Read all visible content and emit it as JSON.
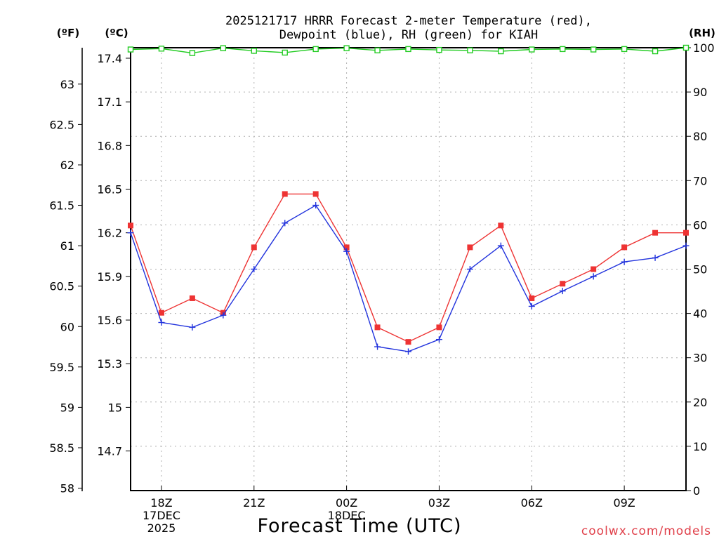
{
  "chart_data": {
    "type": "line",
    "title_lines": [
      "2025121717 HRRR Forecast 2-meter Temperature (red),",
      "Dewpoint (blue), RH (green) for KIAH"
    ],
    "xlabel": "Forecast Time (UTC)",
    "credit": "coolwx.com/models",
    "units": {
      "f": "(ºF)",
      "c": "(ºC)",
      "rh": "(RH)"
    },
    "x_hours_range": [
      17,
      35
    ],
    "x_ticks": [
      {
        "hour": 18,
        "lines": [
          "18Z",
          "17DEC",
          "2025"
        ]
      },
      {
        "hour": 21,
        "lines": [
          "21Z"
        ]
      },
      {
        "hour": 24,
        "lines": [
          "00Z",
          "18DEC"
        ]
      },
      {
        "hour": 27,
        "lines": [
          "03Z"
        ]
      },
      {
        "hour": 30,
        "lines": [
          "06Z"
        ]
      },
      {
        "hour": 33,
        "lines": [
          "09Z"
        ]
      }
    ],
    "left_f_ticks": [
      "63",
      "62.5",
      "62",
      "61.5",
      "61",
      "60.5",
      "60",
      "59.5",
      "59",
      "58.5",
      "58"
    ],
    "left_c_ticks": [
      "17.4",
      "17.1",
      "16.8",
      "16.5",
      "16.2",
      "15.9",
      "15.6",
      "15.3",
      "15",
      "14.7"
    ],
    "right_rh_ticks": [
      "100",
      "90",
      "80",
      "70",
      "60",
      "50",
      "40",
      "30",
      "20",
      "10",
      "0"
    ],
    "f_range": [
      57.97,
      63.45
    ],
    "rh_range": [
      0,
      100
    ],
    "series": [
      {
        "name": "Temperature",
        "color": "#ee3333",
        "axis": "F",
        "marker": "square-filled",
        "values": [
          61.25,
          60.17,
          60.35,
          60.17,
          60.98,
          61.64,
          61.64,
          60.98,
          59.99,
          59.81,
          59.99,
          60.98,
          61.25,
          60.35,
          60.53,
          60.71,
          60.98,
          61.16,
          61.16
        ]
      },
      {
        "name": "Dewpoint",
        "color": "#2233dd",
        "axis": "F",
        "marker": "plus",
        "values": [
          61.16,
          60.05,
          59.99,
          60.14,
          60.71,
          61.28,
          61.5,
          60.93,
          59.75,
          59.69,
          59.84,
          60.71,
          61.0,
          60.25,
          60.44,
          60.62,
          60.8,
          60.85,
          61.0
        ]
      },
      {
        "name": "RH",
        "color": "#22cc22",
        "axis": "RH",
        "marker": "square-open",
        "values": [
          99.6,
          99.8,
          98.8,
          99.9,
          99.3,
          98.9,
          99.7,
          99.9,
          99.4,
          99.7,
          99.5,
          99.4,
          99.2,
          99.6,
          99.7,
          99.6,
          99.7,
          99.2,
          100
        ]
      }
    ]
  }
}
